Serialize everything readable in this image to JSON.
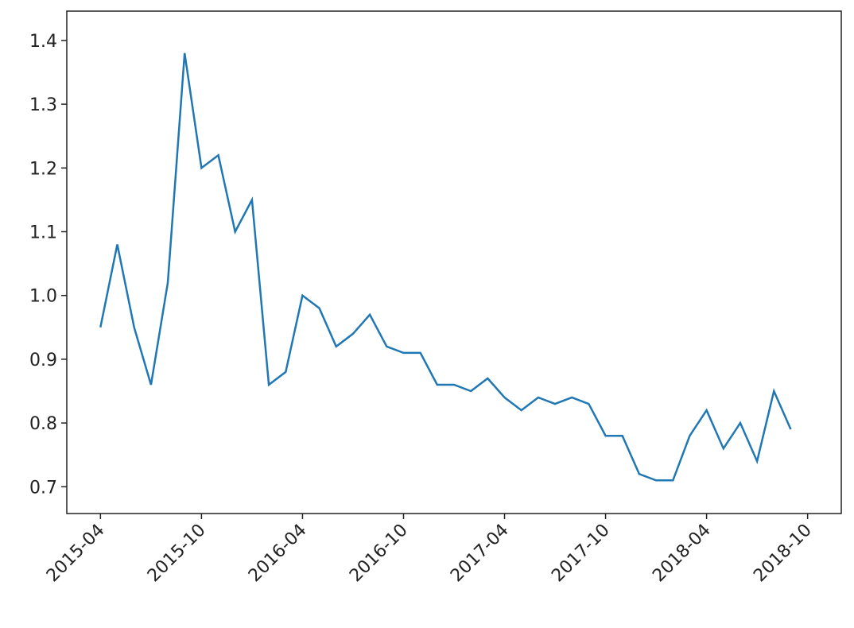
{
  "chart_data": {
    "type": "line",
    "x": [
      "2015-04",
      "2015-05",
      "2015-06",
      "2015-07",
      "2015-08",
      "2015-09",
      "2015-10",
      "2015-11",
      "2015-12",
      "2016-01",
      "2016-02",
      "2016-03",
      "2016-04",
      "2016-05",
      "2016-06",
      "2016-07",
      "2016-08",
      "2016-09",
      "2016-10",
      "2016-11",
      "2016-12",
      "2017-01",
      "2017-02",
      "2017-03",
      "2017-04",
      "2017-05",
      "2017-06",
      "2017-07",
      "2017-08",
      "2017-09",
      "2017-10",
      "2017-11",
      "2017-12",
      "2018-01",
      "2018-02",
      "2018-03",
      "2018-04",
      "2018-05",
      "2018-06",
      "2018-07",
      "2018-08",
      "2018-09"
    ],
    "series": [
      {
        "color": "#1f77b4",
        "values": [
          0.95,
          1.08,
          0.95,
          0.86,
          1.02,
          1.38,
          1.2,
          1.22,
          1.1,
          1.15,
          0.86,
          0.88,
          1.0,
          0.98,
          0.92,
          0.94,
          0.97,
          0.92,
          0.91,
          0.91,
          0.86,
          0.86,
          0.85,
          0.87,
          0.84,
          0.82,
          0.84,
          0.83,
          0.84,
          0.83,
          0.78,
          0.78,
          0.72,
          0.71,
          0.71,
          0.78,
          0.82,
          0.76,
          0.8,
          0.74,
          0.85,
          0.79
        ]
      }
    ],
    "xlim": [
      "2015-02",
      "2018-12"
    ],
    "xticks": [
      "2015-04",
      "2015-10",
      "2016-04",
      "2016-10",
      "2017-04",
      "2017-10",
      "2018-04",
      "2018-10"
    ],
    "ylim": [
      0.658,
      1.446
    ],
    "yticks": [
      0.7,
      0.8,
      0.9,
      {
        "value": 1,
        "label": "1.0"
      },
      1.1,
      1.2,
      1.3,
      1.4
    ]
  }
}
